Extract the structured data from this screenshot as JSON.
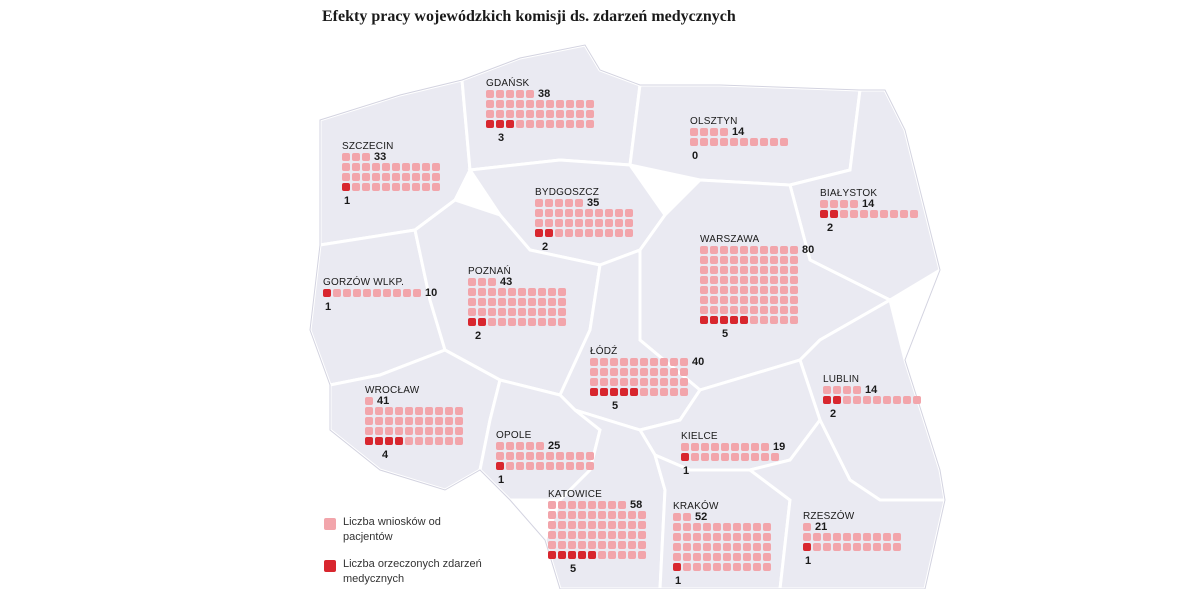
{
  "title": "Efekty pracy wojewódzkich komisji ds. zdarzeń medycznych",
  "colors": {
    "applications": "#f2a5ab",
    "rulings": "#d8262e",
    "map_fill": "#eaeaf2"
  },
  "legend": {
    "applications_label": "Liczba wniosków od pacjentów",
    "rulings_label": "Liczba orzeczonych zdarzeń medycznych"
  },
  "regions": [
    {
      "id": "gdansk",
      "name": "GDAŃSK",
      "applications": 38,
      "rulings": 3
    },
    {
      "id": "olsztyn",
      "name": "OLSZTYN",
      "applications": 14,
      "rulings": 0
    },
    {
      "id": "szczecin",
      "name": "SZCZECIN",
      "applications": 33,
      "rulings": 1
    },
    {
      "id": "bydgoszcz",
      "name": "BYDGOSZCZ",
      "applications": 35,
      "rulings": 2
    },
    {
      "id": "bialystok",
      "name": "BIAŁYSTOK",
      "applications": 14,
      "rulings": 2
    },
    {
      "id": "warszawa",
      "name": "WARSZAWA",
      "applications": 80,
      "rulings": 5
    },
    {
      "id": "gorzow",
      "name": "GORZÓW WLKP.",
      "applications": 10,
      "rulings": 1
    },
    {
      "id": "poznan",
      "name": "POZNAŃ",
      "applications": 43,
      "rulings": 2
    },
    {
      "id": "lodz",
      "name": "ŁÓDŹ",
      "applications": 40,
      "rulings": 5
    },
    {
      "id": "lublin",
      "name": "LUBLIN",
      "applications": 14,
      "rulings": 2
    },
    {
      "id": "wroclaw",
      "name": "WROCŁAW",
      "applications": 41,
      "rulings": 4
    },
    {
      "id": "opole",
      "name": "OPOLE",
      "applications": 25,
      "rulings": 1
    },
    {
      "id": "kielce",
      "name": "KIELCE",
      "applications": 19,
      "rulings": 1
    },
    {
      "id": "katowice",
      "name": "KATOWICE",
      "applications": 58,
      "rulings": 5
    },
    {
      "id": "krakow",
      "name": "KRAKÓW",
      "applications": 52,
      "rulings": 1
    },
    {
      "id": "rzeszow",
      "name": "RZESZÓW",
      "applications": 21,
      "rulings": 1
    }
  ]
}
